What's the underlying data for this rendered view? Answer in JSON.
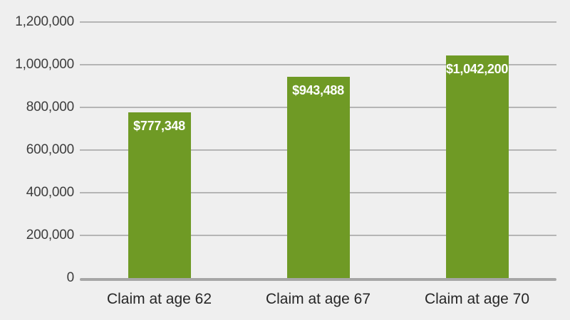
{
  "chart_data": {
    "type": "bar",
    "title": "",
    "xlabel": "",
    "ylabel": "",
    "categories": [
      "Claim at age 62",
      "Claim at age 67",
      "Claim at age 70"
    ],
    "values": [
      777348,
      943488,
      1042200
    ],
    "value_labels": [
      "$777,348",
      "$943,488",
      "$1,042,200"
    ],
    "ylim": [
      0,
      1200000
    ],
    "yticks": [
      0,
      200000,
      400000,
      600000,
      800000,
      1000000,
      1200000
    ],
    "ytick_labels": [
      "0",
      "200,000",
      "400,000",
      "600,000",
      "800,000",
      "1,000,000",
      "1,200,000"
    ],
    "grid": true,
    "legend": false,
    "colors": {
      "background": "#efefef",
      "bar": "#6f9a25",
      "gridline": "#b5b5b5",
      "axis_line": "#a6a6a6",
      "tick_label": "#3d3d3d",
      "category_label": "#262626",
      "value_label": "#ffffff"
    }
  }
}
